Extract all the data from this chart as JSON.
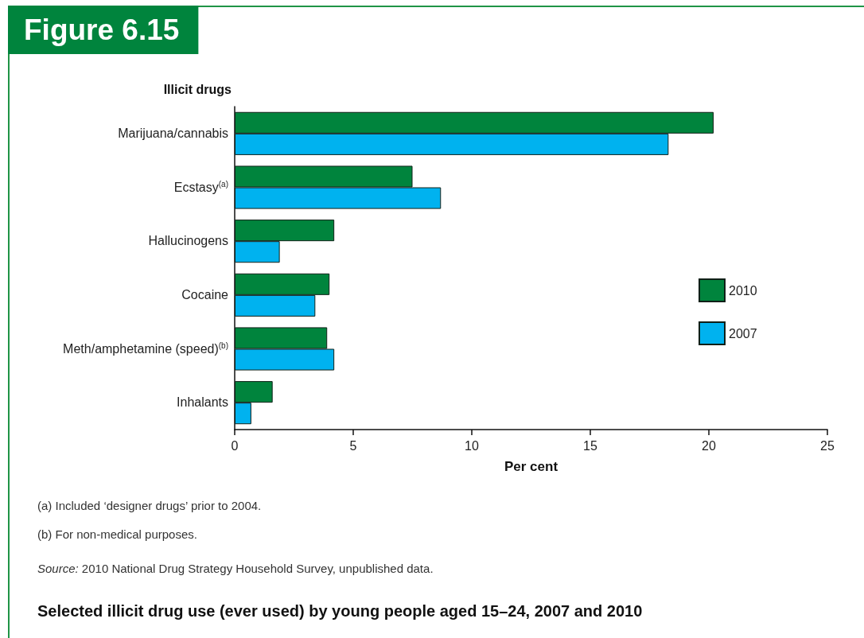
{
  "chart_data": {
    "type": "bar",
    "orientation": "horizontal",
    "title": "Figure 6.15",
    "subtitle": "Selected illicit drug use (ever used) by young people aged 15–24, 2007 and 2010",
    "xlabel": "Per cent",
    "ylabel": "Illicit drugs",
    "categories": [
      "Marijuana/cannabis",
      "Ecstasy$^{(a)}$",
      "Hallucinogens",
      "Cocaine",
      "Meth/amphetamine (speed)$^{(b)}$",
      "Inhalants"
    ],
    "series": [
      {
        "name": "2010",
        "color": "#00843d",
        "values": [
          20.2,
          7.5,
          4.2,
          4.0,
          3.9,
          1.6
        ]
      },
      {
        "name": "2007",
        "color": "#00b2ef",
        "values": [
          18.3,
          8.7,
          1.9,
          3.4,
          4.2,
          0.7
        ]
      }
    ],
    "xlim": [
      0,
      25
    ],
    "xticks": [
      0,
      5,
      10,
      15,
      20,
      25
    ],
    "grid": false,
    "legend": "right",
    "annotations": [
      "(a) Included ‘designer drugs’ prior to 2004.",
      "(b) For non-medical purposes.",
      "Source: 2010 National Drug Strategy Household Survey, unpublished data."
    ]
  }
}
